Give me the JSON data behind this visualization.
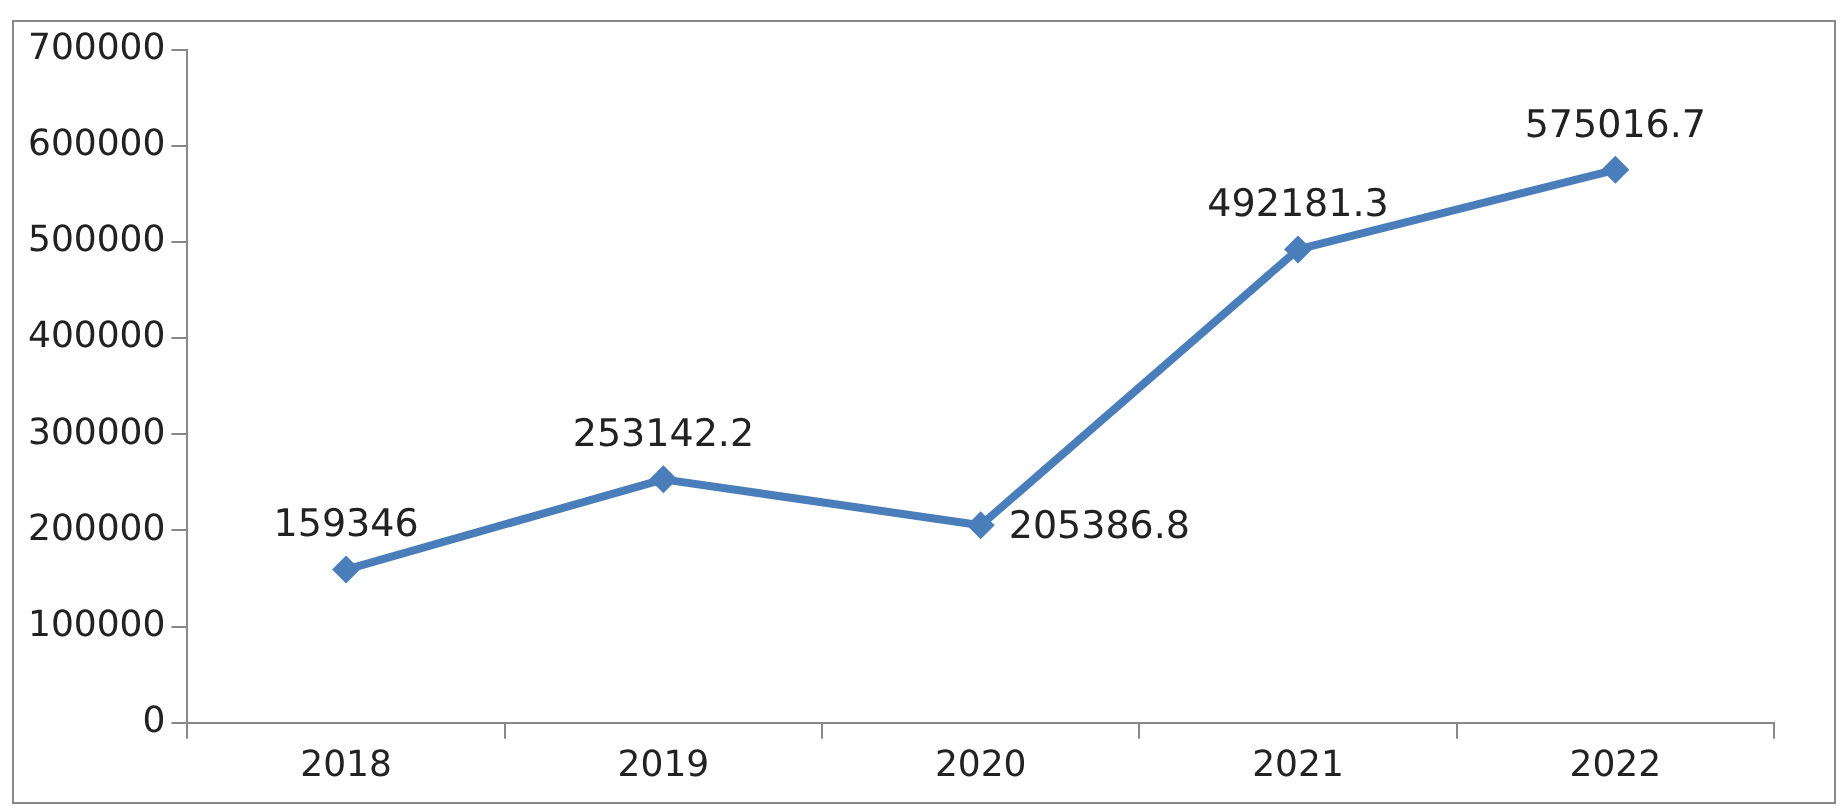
{
  "chart_data": {
    "type": "line",
    "categories": [
      "2018",
      "2019",
      "2020",
      "2021",
      "2022"
    ],
    "series": [
      {
        "color": "#4a7ebb",
        "values": [
          159346,
          253142.2,
          205386.8,
          492181.3,
          575016.7
        ]
      }
    ],
    "ylim": [
      0,
      700000
    ],
    "yticks": [
      0,
      100000,
      200000,
      300000,
      400000,
      500000,
      600000,
      700000
    ],
    "grid": false,
    "legend": false,
    "marker": "diamond",
    "line_style": "solid",
    "data_labels": true
  }
}
